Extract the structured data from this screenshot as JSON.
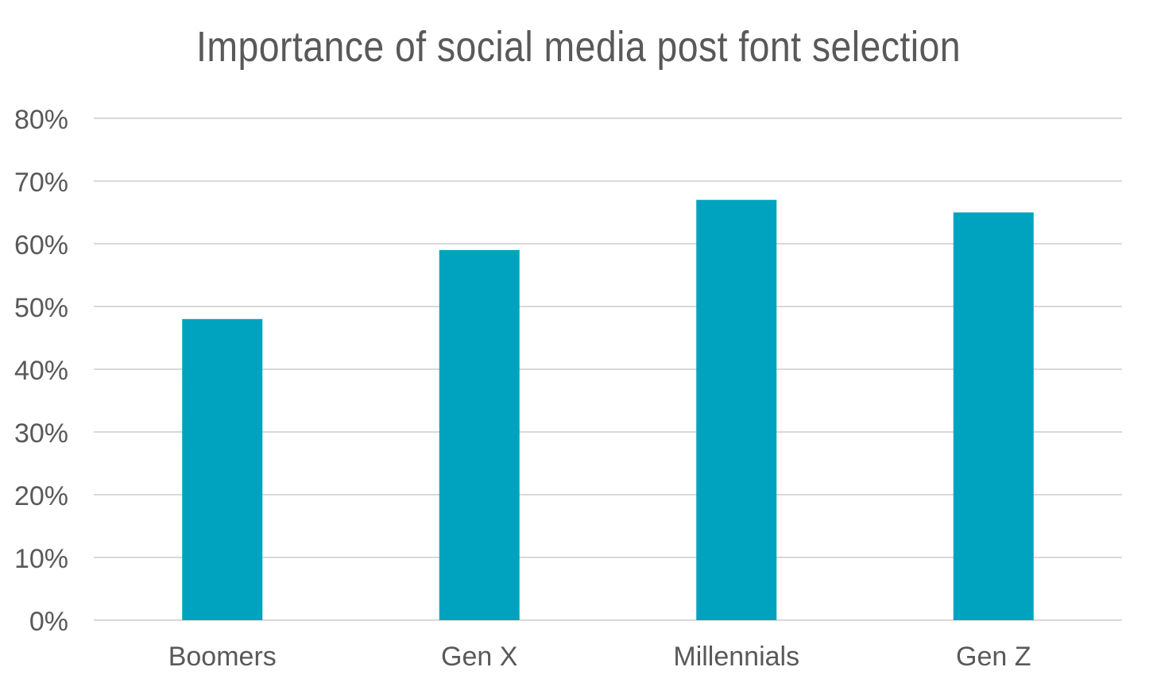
{
  "chart_data": {
    "type": "bar",
    "title": "Importance of social media post font selection",
    "categories": [
      "Boomers",
      "Gen X",
      "Millennials",
      "Gen Z"
    ],
    "values": [
      48,
      59,
      67,
      65
    ],
    "value_unit": "%",
    "ylim": [
      0,
      80
    ],
    "yticks": [
      0,
      10,
      20,
      30,
      40,
      50,
      60,
      70,
      80
    ],
    "ytick_labels": [
      "0%",
      "10%",
      "20%",
      "30%",
      "40%",
      "50%",
      "60%",
      "70%",
      "80%"
    ],
    "xlabel": "",
    "ylabel": "",
    "grid": true,
    "legend": "none",
    "colors": {
      "bar": "#00A3BF",
      "grid": "#D9D9D9",
      "text": "#595959",
      "background": "#FFFFFF"
    }
  }
}
